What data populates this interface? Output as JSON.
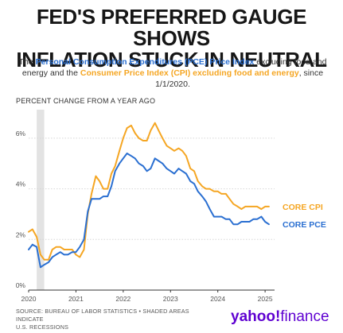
{
  "header": {
    "title_line1": "FED'S PREFERRED GAUGE SHOWS",
    "title_line2": "INFLATION STUCK IN NEUTRAL",
    "subtitle_pre": "The ",
    "subtitle_pce": "Personal Consumption Expenditures (PCE) Price Index",
    "subtitle_mid": " excluding food and energy and the ",
    "subtitle_cpi": "Consumer Price Index (CPI) excluding food and energy",
    "subtitle_post": ", since 1/1/2020."
  },
  "footer": {
    "source_line1": "SOURCE: BUREAU OF LABOR STATISTICS • SHADED AREAS INDICATE",
    "source_line2": "U.S. RECESSIONS",
    "logo_yahoo": "yahoo!",
    "logo_finance": "finance"
  },
  "colors": {
    "pce": "#2a6fd1",
    "cpi": "#f5a623",
    "recession": "#e3e3e3",
    "grid": "#d6d6d6"
  },
  "chart_data": {
    "type": "line",
    "title": "PERCENT CHANGE FROM A YEAR AGO",
    "ylim": [
      0,
      7
    ],
    "yticks": [
      0,
      2,
      4,
      6
    ],
    "ytick_labels": [
      "0%",
      "2%",
      "4%",
      "6%"
    ],
    "xlim": [
      2020.0,
      2025.2
    ],
    "xticks": [
      2020,
      2021,
      2022,
      2023,
      2024,
      2025
    ],
    "xtick_labels": [
      "2020",
      "2021",
      "2022",
      "2023",
      "2024",
      "2025"
    ],
    "recession": [
      2020.17,
      2020.33
    ],
    "grid": true,
    "series": [
      {
        "name": "CORE CPI",
        "color": "#f5a623",
        "x": [
          2020.0,
          2020.08,
          2020.17,
          2020.25,
          2020.33,
          2020.42,
          2020.5,
          2020.58,
          2020.67,
          2020.75,
          2020.83,
          2020.92,
          2021.0,
          2021.08,
          2021.17,
          2021.25,
          2021.33,
          2021.42,
          2021.5,
          2021.58,
          2021.67,
          2021.75,
          2021.83,
          2021.92,
          2022.0,
          2022.08,
          2022.17,
          2022.25,
          2022.33,
          2022.42,
          2022.5,
          2022.58,
          2022.67,
          2022.75,
          2022.83,
          2022.92,
          2023.0,
          2023.08,
          2023.17,
          2023.25,
          2023.33,
          2023.42,
          2023.5,
          2023.58,
          2023.67,
          2023.75,
          2023.83,
          2023.92,
          2024.0,
          2024.08,
          2024.17,
          2024.25,
          2024.33,
          2024.42,
          2024.5,
          2024.58,
          2024.67,
          2024.75,
          2024.83,
          2024.92,
          2025.0,
          2025.08
        ],
        "y": [
          2.3,
          2.4,
          2.1,
          1.4,
          1.2,
          1.2,
          1.6,
          1.7,
          1.7,
          1.6,
          1.6,
          1.6,
          1.4,
          1.3,
          1.6,
          3.0,
          3.8,
          4.5,
          4.3,
          4.0,
          4.0,
          4.6,
          4.9,
          5.5,
          6.0,
          6.4,
          6.5,
          6.2,
          6.0,
          5.9,
          5.9,
          6.3,
          6.6,
          6.3,
          6.0,
          5.7,
          5.6,
          5.5,
          5.6,
          5.5,
          5.3,
          4.8,
          4.7,
          4.3,
          4.1,
          4.0,
          4.0,
          3.9,
          3.9,
          3.8,
          3.8,
          3.6,
          3.4,
          3.3,
          3.2,
          3.3,
          3.3,
          3.3,
          3.3,
          3.2,
          3.3,
          3.3
        ]
      },
      {
        "name": "CORE PCE",
        "color": "#2a6fd1",
        "x": [
          2020.0,
          2020.08,
          2020.17,
          2020.25,
          2020.33,
          2020.42,
          2020.5,
          2020.58,
          2020.67,
          2020.75,
          2020.83,
          2020.92,
          2021.0,
          2021.08,
          2021.17,
          2021.25,
          2021.33,
          2021.42,
          2021.5,
          2021.58,
          2021.67,
          2021.75,
          2021.83,
          2021.92,
          2022.0,
          2022.08,
          2022.17,
          2022.25,
          2022.33,
          2022.42,
          2022.5,
          2022.58,
          2022.67,
          2022.75,
          2022.83,
          2022.92,
          2023.0,
          2023.08,
          2023.17,
          2023.25,
          2023.33,
          2023.42,
          2023.5,
          2023.58,
          2023.67,
          2023.75,
          2023.83,
          2023.92,
          2024.0,
          2024.08,
          2024.17,
          2024.25,
          2024.33,
          2024.42,
          2024.5,
          2024.58,
          2024.67,
          2024.75,
          2024.83,
          2024.92,
          2025.0,
          2025.08
        ],
        "y": [
          1.6,
          1.8,
          1.7,
          0.9,
          1.0,
          1.1,
          1.3,
          1.4,
          1.5,
          1.4,
          1.4,
          1.5,
          1.5,
          1.7,
          2.0,
          3.1,
          3.6,
          3.6,
          3.6,
          3.7,
          3.7,
          4.1,
          4.7,
          5.0,
          5.2,
          5.4,
          5.3,
          5.2,
          5.0,
          4.9,
          4.7,
          4.8,
          5.2,
          5.1,
          5.0,
          4.8,
          4.7,
          4.6,
          4.8,
          4.7,
          4.6,
          4.3,
          4.2,
          3.9,
          3.7,
          3.5,
          3.2,
          2.9,
          2.9,
          2.9,
          2.8,
          2.8,
          2.6,
          2.6,
          2.7,
          2.7,
          2.7,
          2.8,
          2.8,
          2.9,
          2.7,
          2.6
        ]
      }
    ]
  }
}
